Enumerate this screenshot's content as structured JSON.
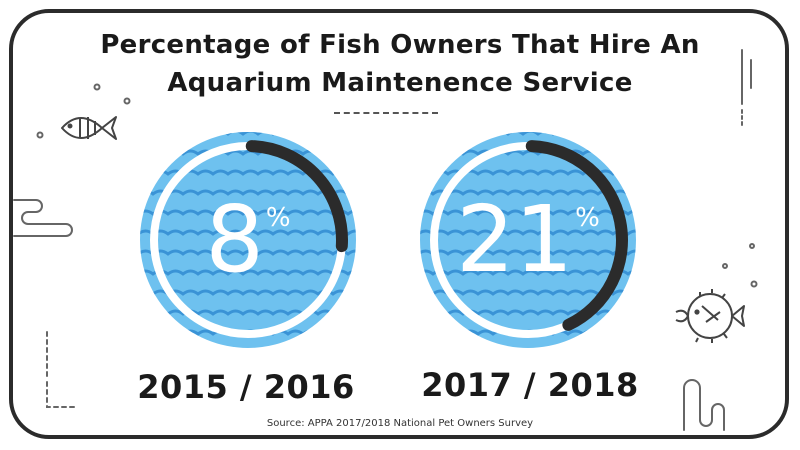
{
  "chart_data": {
    "type": "gauge",
    "title_lines": [
      "Percentage of Fish Owners That Hire An",
      "Aquarium Maintenence Service"
    ],
    "categories": [
      "2015 / 2016",
      "2017 / 2018"
    ],
    "values": [
      8,
      21
    ],
    "unit": "%",
    "value_text": [
      "8",
      "21"
    ],
    "max": 100
  },
  "source": "Source: APPA 2017/2018 National Pet Owners Survey",
  "colors": {
    "water": "#6ec1ef",
    "wave": "#3a93d6",
    "ring": "#ffffff",
    "arc": "#2b2b2b",
    "frame": "#2b2b2b"
  },
  "icons": [
    "fish-icon",
    "pufferfish-icon"
  ]
}
